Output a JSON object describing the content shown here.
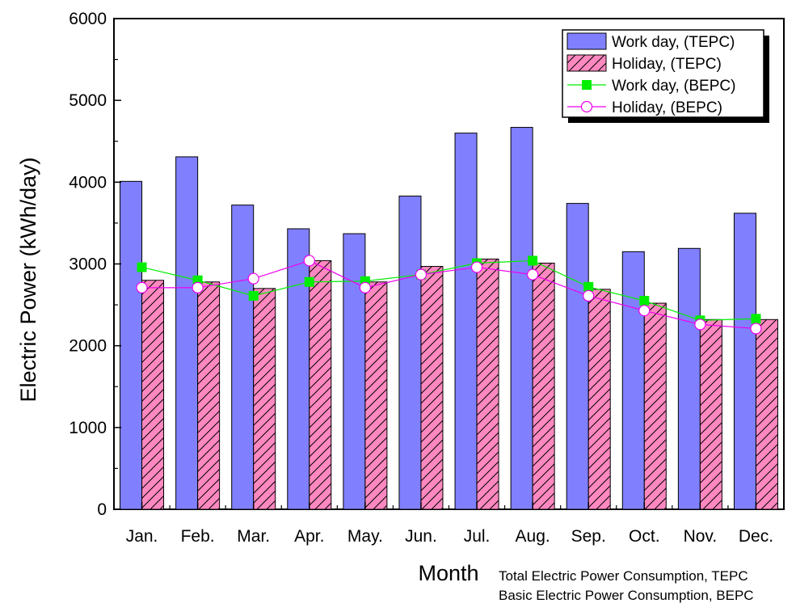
{
  "chart_data": {
    "type": "bar",
    "title": "",
    "xlabel": "Month",
    "ylabel": "Electric Power (kWh/day)",
    "ylim": [
      0,
      6000
    ],
    "yticks": [
      0,
      1000,
      2000,
      3000,
      4000,
      5000,
      6000
    ],
    "grid": false,
    "legend_position": "top-right",
    "categories": [
      "Jan.",
      "Feb.",
      "Mar.",
      "Apr.",
      "May.",
      "Jun.",
      "Jul.",
      "Aug.",
      "Sep.",
      "Oct.",
      "Nov.",
      "Dec."
    ],
    "series": [
      {
        "name": "Work day, (TEPC)",
        "kind": "bar",
        "color": "#8080ff",
        "values": [
          4010,
          4310,
          3720,
          3430,
          3370,
          3830,
          4600,
          4670,
          3740,
          3150,
          3190,
          3620
        ]
      },
      {
        "name": "Holiday, (TEPC)",
        "kind": "bar",
        "pattern": "hatched",
        "color": "#ff88c0",
        "values": [
          2800,
          2780,
          2700,
          3040,
          2780,
          2970,
          3060,
          3010,
          2690,
          2520,
          2320,
          2320
        ]
      },
      {
        "name": "Work day, (BEPC)",
        "kind": "line",
        "marker": "filled-square",
        "color": "#00ee00",
        "values": [
          2960,
          2800,
          2610,
          2780,
          2790,
          2870,
          3010,
          3040,
          2720,
          2550,
          2310,
          2330
        ]
      },
      {
        "name": "Holiday, (BEPC)",
        "kind": "line",
        "marker": "open-circle",
        "color": "#ee00ee",
        "values": [
          2710,
          2710,
          2820,
          3040,
          2710,
          2870,
          2960,
          2870,
          2610,
          2430,
          2260,
          2210
        ]
      }
    ],
    "annotations": [
      "Total Electric Power Consumption, TEPC",
      "Basic Electric Power Consumption, BEPC"
    ]
  }
}
